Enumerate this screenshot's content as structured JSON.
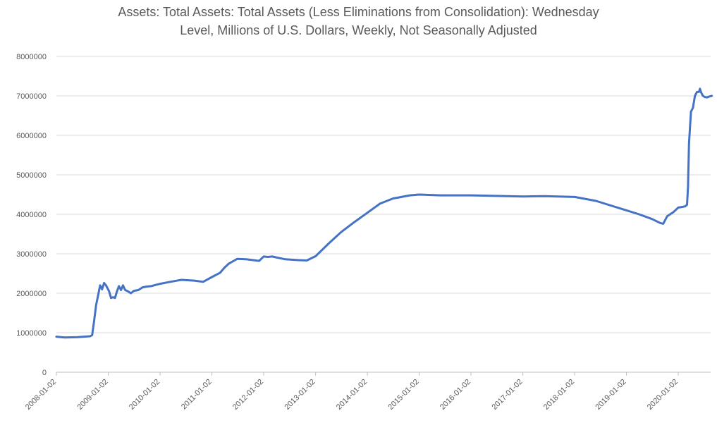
{
  "chart_data": {
    "type": "line",
    "title_line1": "Assets: Total Assets: Total Assets (Less Eliminations from Consolidation): Wednesday",
    "title_line2": "Level, Millions of U.S. Dollars, Weekly, Not Seasonally Adjusted",
    "xlabel": "",
    "ylabel": "",
    "ylim": [
      0,
      8000000
    ],
    "yticks": [
      "0",
      "1000000",
      "2000000",
      "3000000",
      "4000000",
      "5000000",
      "6000000",
      "7000000",
      "8000000"
    ],
    "xticks": [
      "2008-01-02",
      "2009-01-02",
      "2010-01-02",
      "2011-01-02",
      "2012-01-02",
      "2013-01-02",
      "2014-01-02",
      "2015-01-02",
      "2016-01-02",
      "2017-01-02",
      "2018-01-02",
      "2019-01-02",
      "2020-01-02"
    ],
    "xlim": [
      "2008-01-02",
      "2020-08-26"
    ],
    "grid": true,
    "line_color": "#4472c4",
    "series": [
      {
        "x": [
          "2008-01-02",
          "2008-03-01",
          "2008-06-01",
          "2008-08-27",
          "2008-09-10",
          "2008-09-24",
          "2008-10-08",
          "2008-10-22",
          "2008-11-05",
          "2008-11-19",
          "2008-12-03",
          "2008-12-17",
          "2009-01-07",
          "2009-01-21",
          "2009-02-04",
          "2009-02-18",
          "2009-03-04",
          "2009-03-18",
          "2009-04-01",
          "2009-04-15",
          "2009-05-01",
          "2009-05-20",
          "2009-06-10",
          "2009-07-01",
          "2009-08-01",
          "2009-09-01",
          "2009-10-01",
          "2009-11-01",
          "2009-12-01",
          "2010-01-02",
          "2010-03-01",
          "2010-06-01",
          "2010-09-01",
          "2010-11-01",
          "2011-01-02",
          "2011-03-01",
          "2011-04-01",
          "2011-05-01",
          "2011-06-29",
          "2011-09-01",
          "2011-12-01",
          "2012-01-02",
          "2012-02-01",
          "2012-03-01",
          "2012-06-01",
          "2012-09-01",
          "2012-11-01",
          "2013-01-02",
          "2013-04-01",
          "2013-07-01",
          "2013-10-01",
          "2014-01-02",
          "2014-04-01",
          "2014-07-01",
          "2014-10-29",
          "2015-01-02",
          "2015-06-01",
          "2016-01-02",
          "2017-01-02",
          "2017-06-01",
          "2018-01-02",
          "2018-06-01",
          "2019-01-02",
          "2019-04-01",
          "2019-07-01",
          "2019-08-28",
          "2019-09-18",
          "2019-10-16",
          "2019-12-01",
          "2020-01-02",
          "2020-02-19",
          "2020-03-04",
          "2020-03-11",
          "2020-03-18",
          "2020-03-25",
          "2020-04-01",
          "2020-04-15",
          "2020-04-29",
          "2020-05-13",
          "2020-05-27",
          "2020-06-03",
          "2020-06-10",
          "2020-06-24",
          "2020-07-08",
          "2020-07-22",
          "2020-08-05",
          "2020-08-26"
        ],
        "y": [
          900000,
          880000,
          890000,
          910000,
          940000,
          1300000,
          1700000,
          1950000,
          2200000,
          2100000,
          2260000,
          2200000,
          2050000,
          1880000,
          1900000,
          1880000,
          2050000,
          2180000,
          2080000,
          2200000,
          2080000,
          2050000,
          2000000,
          2060000,
          2080000,
          2150000,
          2170000,
          2180000,
          2210000,
          2240000,
          2280000,
          2340000,
          2320000,
          2290000,
          2410000,
          2520000,
          2650000,
          2750000,
          2870000,
          2860000,
          2820000,
          2930000,
          2920000,
          2930000,
          2860000,
          2840000,
          2830000,
          2940000,
          3250000,
          3550000,
          3800000,
          4040000,
          4270000,
          4400000,
          4480000,
          4500000,
          4480000,
          4480000,
          4450000,
          4460000,
          4440000,
          4340000,
          4100000,
          4000000,
          3880000,
          3780000,
          3760000,
          3950000,
          4060000,
          4170000,
          4200000,
          4240000,
          4700000,
          5800000,
          6200000,
          6600000,
          6700000,
          7000000,
          7100000,
          7100000,
          7180000,
          7100000,
          7000000,
          6970000,
          6960000,
          6980000,
          7000000
        ]
      }
    ]
  }
}
